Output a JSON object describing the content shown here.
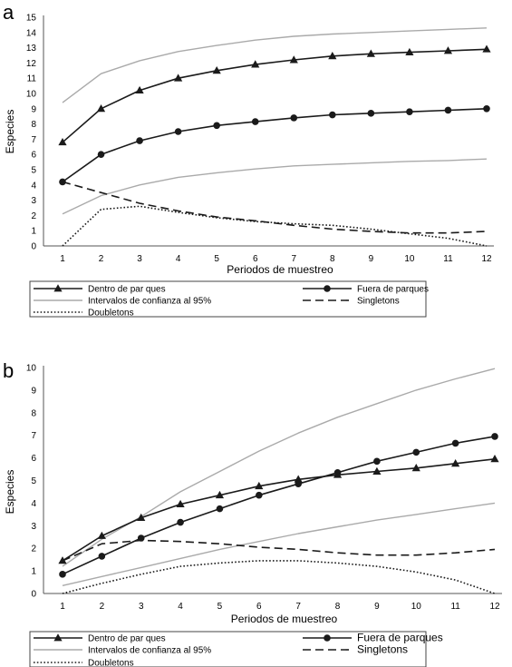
{
  "chart_data": [
    {
      "type": "line",
      "panel_label": "a",
      "title": "",
      "xlabel": "Periodos de muestreo",
      "ylabel": "Especies",
      "x": [
        1,
        2,
        3,
        4,
        5,
        6,
        7,
        8,
        9,
        10,
        11,
        12
      ],
      "xlim": [
        1,
        12
      ],
      "ylim": [
        0,
        15
      ],
      "yticks": [
        0,
        1,
        2,
        3,
        4,
        5,
        6,
        7,
        8,
        9,
        10,
        11,
        12,
        13,
        14,
        15
      ],
      "grid": false,
      "legend_position": "bottom",
      "series": [
        {
          "key": "dentro",
          "name": "Dentro de par ques",
          "color": "#1a1a1a",
          "style": "solid",
          "marker": "triangle",
          "values": [
            6.8,
            9.0,
            10.2,
            11.0,
            11.5,
            11.9,
            12.2,
            12.45,
            12.6,
            12.7,
            12.8,
            12.9
          ]
        },
        {
          "key": "fuera",
          "name": "Fuera de parques",
          "color": "#1a1a1a",
          "style": "solid",
          "marker": "circle",
          "values": [
            4.2,
            6.0,
            6.9,
            7.5,
            7.9,
            8.15,
            8.4,
            8.6,
            8.7,
            8.8,
            8.9,
            9.0
          ]
        },
        {
          "key": "ci_upper",
          "name": "Intervalos de confianza al 95%",
          "color": "#aaaaaa",
          "style": "solid",
          "marker": "none",
          "values": [
            9.4,
            11.3,
            12.15,
            12.75,
            13.15,
            13.5,
            13.75,
            13.9,
            14.0,
            14.1,
            14.2,
            14.3
          ]
        },
        {
          "key": "ci_lower",
          "name": "",
          "color": "#aaaaaa",
          "style": "solid",
          "marker": "none",
          "values": [
            2.1,
            3.3,
            4.0,
            4.5,
            4.8,
            5.05,
            5.25,
            5.35,
            5.45,
            5.55,
            5.6,
            5.7
          ]
        },
        {
          "key": "singletons",
          "name": "Singletons",
          "color": "#1a1a1a",
          "style": "dashed",
          "marker": "none",
          "values": [
            4.2,
            3.5,
            2.8,
            2.3,
            1.9,
            1.65,
            1.35,
            1.1,
            0.95,
            0.85,
            0.85,
            0.95
          ]
        },
        {
          "key": "doubletons",
          "name": "Doubletons",
          "color": "#1a1a1a",
          "style": "dotted",
          "marker": "none",
          "values": [
            0,
            2.4,
            2.6,
            2.2,
            1.85,
            1.6,
            1.45,
            1.35,
            1.1,
            0.8,
            0.5,
            0
          ]
        }
      ]
    },
    {
      "type": "line",
      "panel_label": "b",
      "title": "",
      "xlabel": "Periodos de muestreo",
      "ylabel": "Especies",
      "x": [
        1,
        2,
        3,
        4,
        5,
        6,
        7,
        8,
        9,
        10,
        11,
        12
      ],
      "xlim": [
        1,
        12
      ],
      "ylim": [
        0,
        10
      ],
      "yticks": [
        0,
        1,
        2,
        3,
        4,
        5,
        6,
        7,
        8,
        9,
        10
      ],
      "grid": false,
      "legend_position": "bottom",
      "series": [
        {
          "key": "dentro",
          "name": "Dentro de par ques",
          "color": "#1a1a1a",
          "style": "solid",
          "marker": "triangle",
          "values": [
            1.45,
            2.55,
            3.35,
            3.95,
            4.35,
            4.75,
            5.05,
            5.25,
            5.4,
            5.55,
            5.75,
            5.95
          ]
        },
        {
          "key": "fuera",
          "name": "Fuera de parques",
          "color": "#1a1a1a",
          "style": "solid",
          "marker": "circle",
          "values": [
            0.85,
            1.65,
            2.45,
            3.15,
            3.75,
            4.35,
            4.85,
            5.35,
            5.85,
            6.25,
            6.65,
            6.95
          ]
        },
        {
          "key": "ci_upper",
          "name": "Intervalos de confianza al 95%",
          "color": "#aaaaaa",
          "style": "solid",
          "marker": "none",
          "values": [
            1.2,
            2.4,
            3.4,
            4.5,
            5.4,
            6.3,
            7.1,
            7.8,
            8.4,
            9.0,
            9.5,
            9.95
          ]
        },
        {
          "key": "ci_lower",
          "name": "",
          "color": "#aaaaaa",
          "style": "solid",
          "marker": "none",
          "values": [
            0.35,
            0.75,
            1.15,
            1.55,
            1.95,
            2.3,
            2.65,
            2.95,
            3.25,
            3.5,
            3.75,
            4.0
          ]
        },
        {
          "key": "singletons",
          "name": "Singletons",
          "color": "#1a1a1a",
          "style": "dashed",
          "marker": "none",
          "values": [
            1.45,
            2.2,
            2.35,
            2.3,
            2.2,
            2.05,
            1.95,
            1.8,
            1.7,
            1.7,
            1.8,
            1.95
          ]
        },
        {
          "key": "doubletons",
          "name": "Doubletons",
          "color": "#1a1a1a",
          "style": "dotted",
          "marker": "none",
          "values": [
            0,
            0.45,
            0.85,
            1.2,
            1.35,
            1.45,
            1.45,
            1.35,
            1.2,
            0.95,
            0.6,
            0
          ]
        }
      ]
    }
  ]
}
